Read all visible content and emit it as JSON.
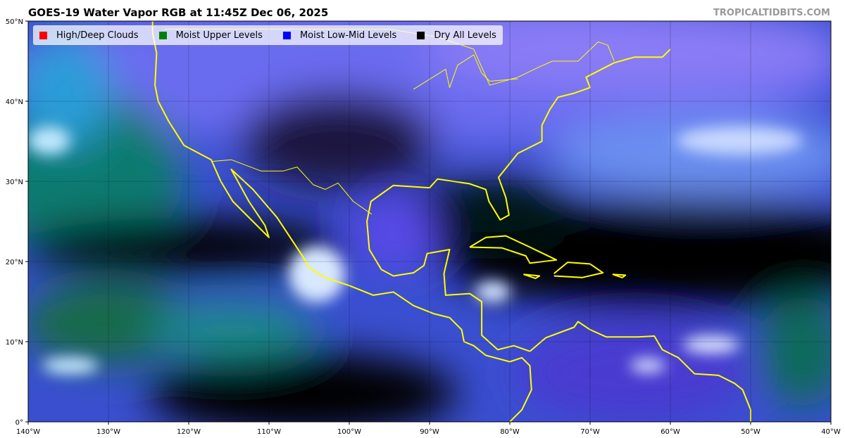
{
  "title": "GOES-19 Water Vapor RGB at 11:45Z Dec 06, 2025",
  "credit": "TROPICALTIDBITS.COM",
  "legend": [
    {
      "label": "High/Deep Clouds",
      "color": "#ff0000"
    },
    {
      "label": "Moist Upper Levels",
      "color": "#008000"
    },
    {
      "label": "Moist Low-Mid Levels",
      "color": "#0000ff"
    },
    {
      "label": "Dry All Levels",
      "color": "#000000"
    }
  ],
  "map": {
    "lon_range": [
      -140,
      -40
    ],
    "lat_range": [
      0,
      50
    ],
    "coastline_color": "#ffff00",
    "lon_ticks": [
      "140°W",
      "130°W",
      "120°W",
      "110°W",
      "100°W",
      "90°W",
      "80°W",
      "70°W",
      "60°W",
      "50°W",
      "40°W"
    ],
    "lat_ticks": [
      "0°",
      "10°N",
      "20°N",
      "30°N",
      "40°N",
      "50°N"
    ]
  }
}
